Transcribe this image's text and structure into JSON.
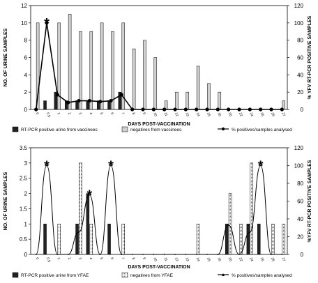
{
  "chart_data": [
    {
      "type": "bar",
      "xlabel": "DAYS POST-VACCINATION",
      "ylabel": "NO. OF URINE SAMPLES",
      "y2label": "% YFV RT-PCR POSITIVE SAMPLES",
      "ylim": [
        0,
        12
      ],
      "yticks": [
        0,
        2,
        4,
        6,
        8,
        10,
        12
      ],
      "y2lim": [
        0,
        120
      ],
      "y2ticks": [
        0,
        20,
        40,
        60,
        80,
        100,
        120
      ],
      "categories": [
        "0",
        "0.5",
        "1",
        "2",
        "3",
        "4",
        "5",
        "6",
        "7",
        "8",
        "9",
        "10",
        "11",
        "12",
        "13",
        "14",
        "15",
        "16",
        "20",
        "22",
        "24",
        "25",
        "26",
        "27"
      ],
      "series": [
        {
          "name": "RT-PCR positive urine from vaccinees",
          "kind": "bar",
          "color": "#222222",
          "values": [
            0,
            1,
            2,
            1,
            1,
            1,
            1,
            1,
            2,
            0,
            0,
            0,
            0,
            0,
            0,
            0,
            0,
            0,
            0,
            0,
            0,
            0,
            0,
            0
          ]
        },
        {
          "name": "negatives from vaccinees",
          "kind": "bar",
          "color": "#d0d0d0",
          "values": [
            10,
            0,
            10,
            11,
            9,
            9,
            10,
            9,
            10,
            7,
            8,
            6,
            1,
            2,
            2,
            5,
            3,
            2,
            0,
            0,
            0,
            0,
            0,
            1
          ]
        },
        {
          "name": "% positives/samples analysed",
          "kind": "line",
          "axis": "right",
          "values": [
            0,
            100,
            17,
            8,
            10,
            10,
            9,
            10,
            17,
            0,
            0,
            0,
            0,
            0,
            0,
            0,
            0,
            0,
            0,
            0,
            0,
            0,
            0,
            0
          ]
        }
      ],
      "annotations": [
        {
          "text": "*",
          "at": "0.5"
        }
      ],
      "legend": [
        "RT-PCR positive urine from vaccinees",
        "negatives from vaccinees",
        "% positives/samples analysed"
      ],
      "legend_position": "bottom"
    },
    {
      "type": "bar",
      "xlabel": "DAYS POST-VACCINATION",
      "ylabel": "NO. OF URINE SAMPLES",
      "y2label": "%YFV RT-PCR POSITIVE SAMPLES",
      "ylim": [
        0,
        3.5
      ],
      "yticks": [
        0,
        0.5,
        1,
        1.5,
        2,
        2.5,
        3,
        3.5
      ],
      "y2lim": [
        0,
        120
      ],
      "y2ticks": [
        0,
        20,
        40,
        60,
        80,
        100,
        120
      ],
      "categories": [
        "0",
        "0.5",
        "1",
        "2",
        "3",
        "4",
        "5",
        "6",
        "7",
        "8",
        "9",
        "10",
        "11",
        "12",
        "13",
        "14",
        "15",
        "16",
        "20",
        "22",
        "24",
        "25",
        "26",
        "27"
      ],
      "series": [
        {
          "name": "RT-PCR positive urine from YFAE",
          "kind": "bar",
          "color": "#222222",
          "values": [
            0,
            1,
            0,
            0,
            1,
            2,
            0,
            1,
            0,
            0,
            0,
            0,
            0,
            0,
            0,
            0,
            0,
            0,
            1,
            0,
            1,
            1,
            0,
            0
          ]
        },
        {
          "name": "negatives from YFAE",
          "kind": "bar",
          "color": "#f0f0f0",
          "values": [
            0,
            0,
            1,
            0,
            3,
            1,
            0,
            0,
            1,
            0,
            0,
            0,
            0,
            0,
            0,
            1,
            0,
            0,
            2,
            1,
            3,
            0,
            1,
            1
          ]
        },
        {
          "name": "% positives/samples analysed",
          "kind": "line",
          "axis": "right",
          "values": [
            0,
            100,
            0,
            0,
            25,
            67,
            0,
            100,
            0,
            0,
            0,
            0,
            0,
            0,
            0,
            0,
            0,
            0,
            33,
            0,
            25,
            100,
            0,
            0
          ]
        }
      ],
      "annotations": [
        {
          "text": "*",
          "at": "0.5"
        },
        {
          "text": "*",
          "at": "4"
        },
        {
          "text": "*",
          "at": "6"
        },
        {
          "text": "*",
          "at": "25"
        }
      ],
      "legend": [
        "RT-PCR positive urine from YFAE",
        "negatives from YFAE",
        "% positives/samples analysed"
      ],
      "legend_position": "bottom"
    }
  ]
}
